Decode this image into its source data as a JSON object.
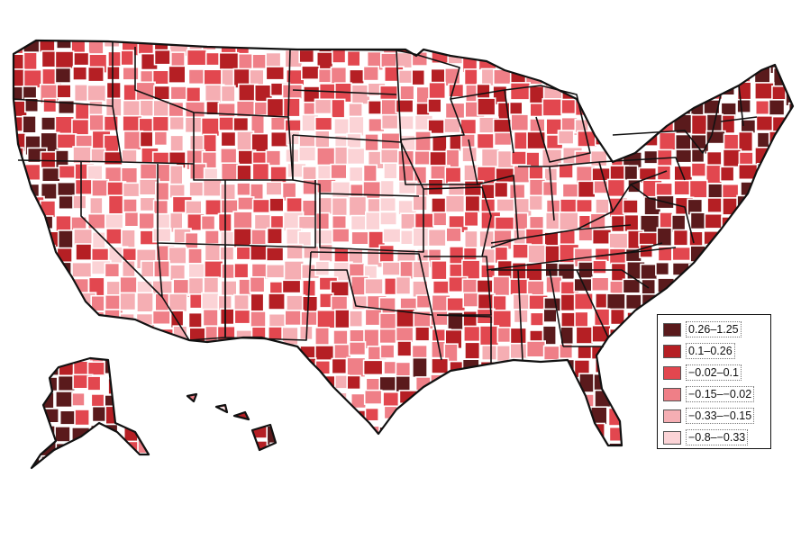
{
  "legend": {
    "items": [
      {
        "label": "0.26–1.25",
        "color": "#5a1a1c"
      },
      {
        "label": "0.1–0.26",
        "color": "#b51f24"
      },
      {
        "label": "−0.02–0.1",
        "color": "#e2474f"
      },
      {
        "label": "−0.15–−0.02",
        "color": "#ef7f87"
      },
      {
        "label": "−0.33–−0.15",
        "color": "#f5aeb3"
      },
      {
        "label": "−0.8–−0.33",
        "color": "#fbd3d6"
      }
    ]
  }
}
